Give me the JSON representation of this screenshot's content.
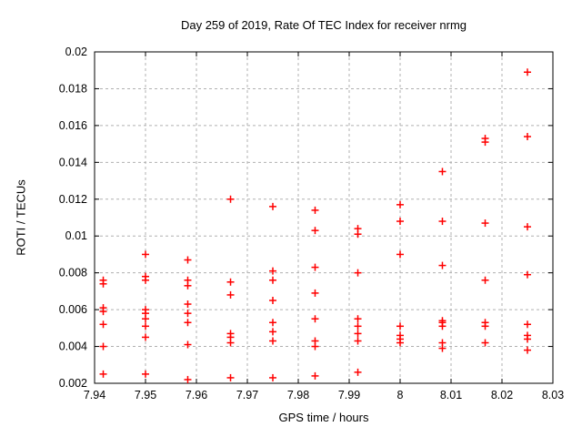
{
  "window": {
    "title": "Day 259 of 2019, Rate Of TEC Index for receiver nrmg"
  },
  "chart_data": {
    "type": "scatter",
    "title": "Day 259 of 2019, Rate Of TEC Index for receiver nrmg",
    "xlabel": "GPS time / hours",
    "ylabel": "ROTI / TECUs",
    "xlim": [
      7.94,
      8.03
    ],
    "ylim": [
      0.002,
      0.02
    ],
    "x_ticks": [
      7.94,
      7.95,
      7.96,
      7.97,
      7.98,
      7.99,
      8,
      8.01,
      8.02,
      8.03
    ],
    "x_tick_labels": [
      "7.94",
      "7.95",
      "7.96",
      "7.97",
      "7.98",
      "7.99",
      "8",
      "8.01",
      "8.02",
      "8.03"
    ],
    "y_ticks": [
      0.002,
      0.004,
      0.006,
      0.008,
      0.01,
      0.012,
      0.014,
      0.016,
      0.018,
      0.02
    ],
    "y_tick_labels": [
      "0.002",
      "0.004",
      "0.006",
      "0.008",
      "0.01",
      "0.012",
      "0.014",
      "0.016",
      "0.018",
      "0.02"
    ],
    "grid": "dashed",
    "grid_color": "#b0b0b0",
    "border_color": "#000000",
    "marker": "plus",
    "marker_color": "#ff0000",
    "legend": "none",
    "series": [
      {
        "name": "ROTI",
        "points": [
          [
            7.9417,
            0.0076
          ],
          [
            7.9417,
            0.0074
          ],
          [
            7.9417,
            0.0061
          ],
          [
            7.9417,
            0.0059
          ],
          [
            7.9417,
            0.0052
          ],
          [
            7.9417,
            0.004
          ],
          [
            7.9417,
            0.0025
          ],
          [
            7.95,
            0.009
          ],
          [
            7.95,
            0.0078
          ],
          [
            7.95,
            0.0076
          ],
          [
            7.95,
            0.006
          ],
          [
            7.95,
            0.0058
          ],
          [
            7.95,
            0.0055
          ],
          [
            7.95,
            0.0051
          ],
          [
            7.95,
            0.0045
          ],
          [
            7.95,
            0.0025
          ],
          [
            7.9583,
            0.0087
          ],
          [
            7.9583,
            0.0076
          ],
          [
            7.9583,
            0.0073
          ],
          [
            7.9583,
            0.0063
          ],
          [
            7.9583,
            0.0058
          ],
          [
            7.9583,
            0.0053
          ],
          [
            7.9583,
            0.0041
          ],
          [
            7.9583,
            0.0022
          ],
          [
            7.9667,
            0.012
          ],
          [
            7.9667,
            0.0075
          ],
          [
            7.9667,
            0.0068
          ],
          [
            7.9667,
            0.0047
          ],
          [
            7.9667,
            0.0045
          ],
          [
            7.9667,
            0.0042
          ],
          [
            7.9667,
            0.0023
          ],
          [
            7.975,
            0.0116
          ],
          [
            7.975,
            0.0081
          ],
          [
            7.975,
            0.0076
          ],
          [
            7.975,
            0.0065
          ],
          [
            7.975,
            0.0053
          ],
          [
            7.975,
            0.0048
          ],
          [
            7.975,
            0.0043
          ],
          [
            7.975,
            0.0023
          ],
          [
            7.9833,
            0.0114
          ],
          [
            7.9833,
            0.0103
          ],
          [
            7.9833,
            0.0083
          ],
          [
            7.9833,
            0.0069
          ],
          [
            7.9833,
            0.0055
          ],
          [
            7.9833,
            0.0043
          ],
          [
            7.9833,
            0.004
          ],
          [
            7.9833,
            0.0024
          ],
          [
            7.9917,
            0.0104
          ],
          [
            7.9917,
            0.0101
          ],
          [
            7.9917,
            0.008
          ],
          [
            7.9917,
            0.0055
          ],
          [
            7.9917,
            0.0051
          ],
          [
            7.9917,
            0.0047
          ],
          [
            7.9917,
            0.0043
          ],
          [
            7.9917,
            0.0026
          ],
          [
            8,
            0.0117
          ],
          [
            8,
            0.0108
          ],
          [
            8,
            0.009
          ],
          [
            8,
            0.0051
          ],
          [
            8,
            0.0046
          ],
          [
            8,
            0.0044
          ],
          [
            8,
            0.0042
          ],
          [
            8.0083,
            0.0135
          ],
          [
            8.0083,
            0.0108
          ],
          [
            8.0083,
            0.0084
          ],
          [
            8.0083,
            0.0054
          ],
          [
            8.0083,
            0.0053
          ],
          [
            8.0083,
            0.0051
          ],
          [
            8.0083,
            0.0042
          ],
          [
            8.0083,
            0.0039
          ],
          [
            8.0167,
            0.0153
          ],
          [
            8.0167,
            0.0151
          ],
          [
            8.0167,
            0.0107
          ],
          [
            8.0167,
            0.0076
          ],
          [
            8.0167,
            0.0053
          ],
          [
            8.0167,
            0.0051
          ],
          [
            8.0167,
            0.0042
          ],
          [
            8.025,
            0.0189
          ],
          [
            8.025,
            0.0154
          ],
          [
            8.025,
            0.0105
          ],
          [
            8.025,
            0.0079
          ],
          [
            8.025,
            0.0052
          ],
          [
            8.025,
            0.0046
          ],
          [
            8.025,
            0.0044
          ],
          [
            8.025,
            0.0038
          ]
        ]
      }
    ]
  }
}
